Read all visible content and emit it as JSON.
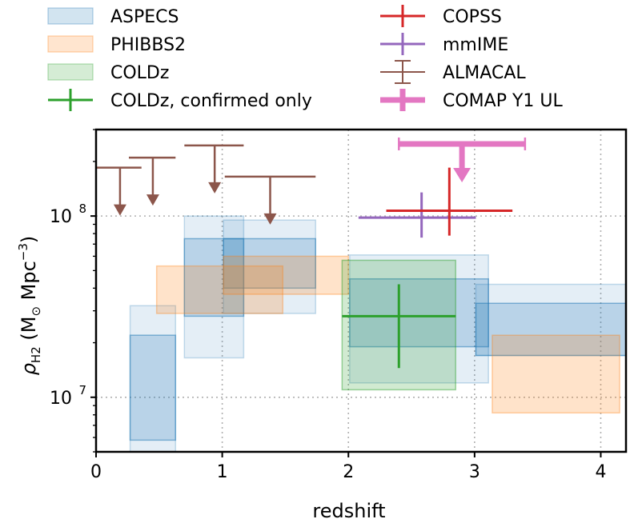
{
  "chart_data": {
    "type": "errorbar+box",
    "xlabel": "redshift",
    "ylabel_prefix": "ρ",
    "ylabel_sub": "H2",
    "ylabel_units_a": " (M",
    "ylabel_units_sun": "⊙",
    "ylabel_units_b": " Mpc",
    "ylabel_units_exp": "−3",
    "ylabel_units_c": ")",
    "xlim": [
      0,
      4.2
    ],
    "ylim": [
      5000000,
      300000000
    ],
    "yscale": "log",
    "grid": true,
    "legend_position": "top",
    "xticks": [
      {
        "value": 0,
        "label": "0"
      },
      {
        "value": 1,
        "label": "1"
      },
      {
        "value": 2,
        "label": "2"
      },
      {
        "value": 3,
        "label": "3"
      },
      {
        "value": 4,
        "label": "4"
      }
    ],
    "yticks": [
      {
        "value": 10000000,
        "base": "10",
        "exp": "7"
      },
      {
        "value": 100000000,
        "base": "10",
        "exp": "8"
      }
    ],
    "colors": {
      "aspecs": "#1f77b4",
      "phibbs2": "#ff7f0e",
      "coldz": "#2ca02c",
      "copss": "#d62728",
      "mmime": "#9467bd",
      "almacal": "#8c564b",
      "comap": "#e377c2"
    },
    "legend": [
      {
        "label": "ASPECS",
        "kind": "patch",
        "color": "#1f77b4"
      },
      {
        "label": "PHIBBS2",
        "kind": "patch",
        "color": "#ff7f0e"
      },
      {
        "label": "COLDz",
        "kind": "patch",
        "color": "#2ca02c"
      },
      {
        "label": "COLDz, confirmed only",
        "kind": "errorbar",
        "color": "#2ca02c",
        "width": 3
      },
      {
        "label": "COPSS",
        "kind": "errorbar",
        "color": "#d62728",
        "width": 3
      },
      {
        "label": "mmIME",
        "kind": "errorbar",
        "color": "#9467bd",
        "width": 3
      },
      {
        "label": "ALMACAL",
        "kind": "errorbar_cap",
        "color": "#8c564b",
        "width": 2
      },
      {
        "label": "COMAP Y1 UL",
        "kind": "errorbar_thick",
        "color": "#e377c2",
        "width": 7
      }
    ],
    "aspecs_outer": [
      {
        "z": [
          0.27,
          0.63
        ],
        "rho": [
          5000000,
          32000000
        ]
      },
      {
        "z": [
          0.7,
          1.17
        ],
        "rho": [
          16500000,
          100000000
        ]
      },
      {
        "z": [
          1.01,
          1.74
        ],
        "rho": [
          29000000,
          95000000
        ]
      },
      {
        "z": [
          2.01,
          3.11
        ],
        "rho": [
          12000000,
          61000000
        ]
      },
      {
        "z": [
          3.01,
          4.2
        ],
        "rho": [
          17000000,
          42000000
        ]
      }
    ],
    "aspecs_inner": [
      {
        "z": [
          0.27,
          0.63
        ],
        "rho": [
          5800000,
          22000000
        ]
      },
      {
        "z": [
          0.7,
          1.17
        ],
        "rho": [
          28000000,
          75000000
        ]
      },
      {
        "z": [
          1.01,
          1.74
        ],
        "rho": [
          40000000,
          75000000
        ]
      },
      {
        "z": [
          2.01,
          3.11
        ],
        "rho": [
          19000000,
          45000000
        ]
      },
      {
        "z": [
          3.01,
          4.2
        ],
        "rho": [
          17000000,
          33000000
        ]
      }
    ],
    "phibbs2": [
      {
        "z": [
          0.48,
          1.48
        ],
        "rho": [
          29000000,
          53000000
        ]
      },
      {
        "z": [
          1.01,
          2.0
        ],
        "rho": [
          37000000,
          60000000
        ]
      },
      {
        "z": [
          3.14,
          4.15
        ],
        "rho": [
          8200000,
          22000000
        ]
      }
    ],
    "coldz": [
      {
        "z": [
          1.95,
          2.85
        ],
        "rho": [
          11000000,
          57000000
        ]
      }
    ],
    "coldz_confirmed": {
      "z": 2.4,
      "zerr": [
        0.45,
        0.45
      ],
      "rho": 28000000,
      "rho_range": [
        14500000,
        42000000
      ]
    },
    "copss": {
      "z": 2.8,
      "zerr": [
        0.5,
        0.5
      ],
      "rho": 107000000,
      "rho_range": [
        78000000,
        185000000
      ]
    },
    "mmime": {
      "z": 2.58,
      "zerr": [
        0.5,
        0.43
      ],
      "rho": 98000000,
      "rho_range": [
        76000000,
        135000000
      ]
    },
    "almacal_ul": [
      {
        "z": 0.19,
        "z_range": [
          0.0,
          0.36
        ],
        "rho": 185000000
      },
      {
        "z": 0.45,
        "z_range": [
          0.26,
          0.63
        ],
        "rho": 210000000
      },
      {
        "z": 0.94,
        "z_range": [
          0.7,
          1.17
        ],
        "rho": 245000000
      },
      {
        "z": 1.38,
        "z_range": [
          1.02,
          1.74
        ],
        "rho": 165000000
      }
    ],
    "comap_ul": {
      "z": 2.9,
      "z_range": [
        2.4,
        3.4
      ],
      "rho": 250000000
    }
  }
}
